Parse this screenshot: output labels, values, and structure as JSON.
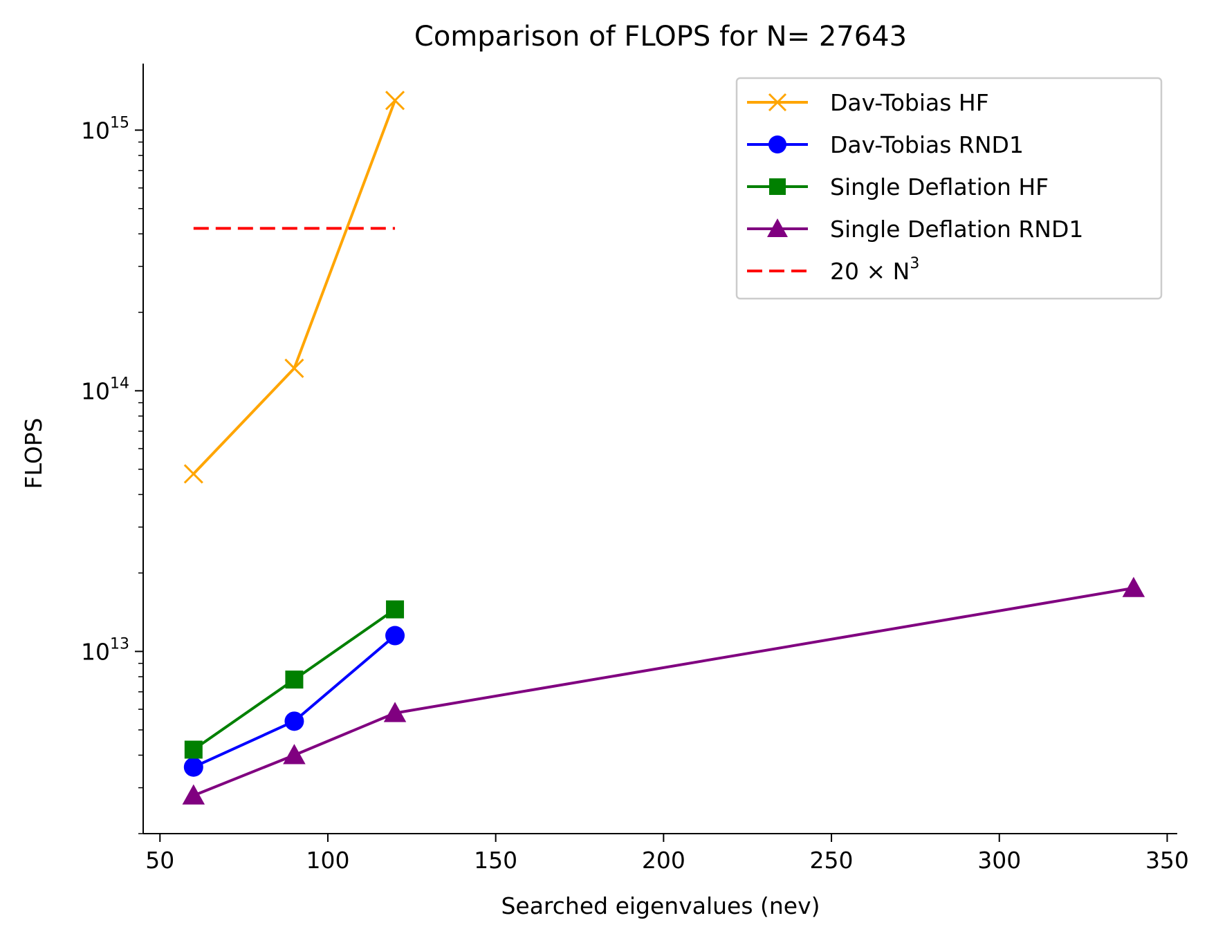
{
  "chart_data": {
    "type": "line",
    "title": "Comparison of FLOPS for N= 27643",
    "xlabel": "Searched eigenvalues (nev)",
    "ylabel": "FLOPS",
    "yscale": "log",
    "xlim": [
      45,
      353
    ],
    "ylim": [
      2000000000000.0,
      1800000000000000.0
    ],
    "xticks": [
      50,
      100,
      150,
      200,
      250,
      300,
      350
    ],
    "xtick_labels": [
      "50",
      "100",
      "150",
      "200",
      "250",
      "300",
      "350"
    ],
    "yticks_major": [
      {
        "value": 10000000000000.0,
        "base": "10",
        "exp": "13"
      },
      {
        "value": 100000000000000.0,
        "base": "10",
        "exp": "14"
      },
      {
        "value": 1000000000000000.0,
        "base": "10",
        "exp": "15"
      }
    ],
    "grid": false,
    "legend_position": "top-right",
    "series": [
      {
        "name": "Dav-Tobias HF",
        "color": "#ffa500",
        "marker": "x",
        "style": "solid",
        "x": [
          60,
          90,
          120
        ],
        "y": [
          48000000000000.0,
          122000000000000.0,
          1300000000000000.0
        ]
      },
      {
        "name": "Dav-Tobias RND1",
        "color": "#0000ff",
        "marker": "circle",
        "style": "solid",
        "x": [
          60,
          90,
          120
        ],
        "y": [
          3600000000000.0,
          5400000000000.0,
          11500000000000.0
        ]
      },
      {
        "name": "Single Deflation HF",
        "color": "#008000",
        "marker": "square",
        "style": "solid",
        "x": [
          60,
          90,
          120
        ],
        "y": [
          4200000000000.0,
          7800000000000.0,
          14500000000000.0
        ]
      },
      {
        "name": "Single Deflation RND1",
        "color": "#800080",
        "marker": "triangle",
        "style": "solid",
        "x": [
          60,
          90,
          120,
          340
        ],
        "y": [
          2800000000000.0,
          4000000000000.0,
          5800000000000.0,
          17500000000000.0
        ]
      },
      {
        "name": "20 × N³",
        "legend_base": "20 × N",
        "legend_sup": "3",
        "color": "#ff0000",
        "marker": "none",
        "style": "dashed",
        "x": [
          60,
          120
        ],
        "y": [
          420000000000000.0,
          420000000000000.0
        ]
      }
    ]
  }
}
